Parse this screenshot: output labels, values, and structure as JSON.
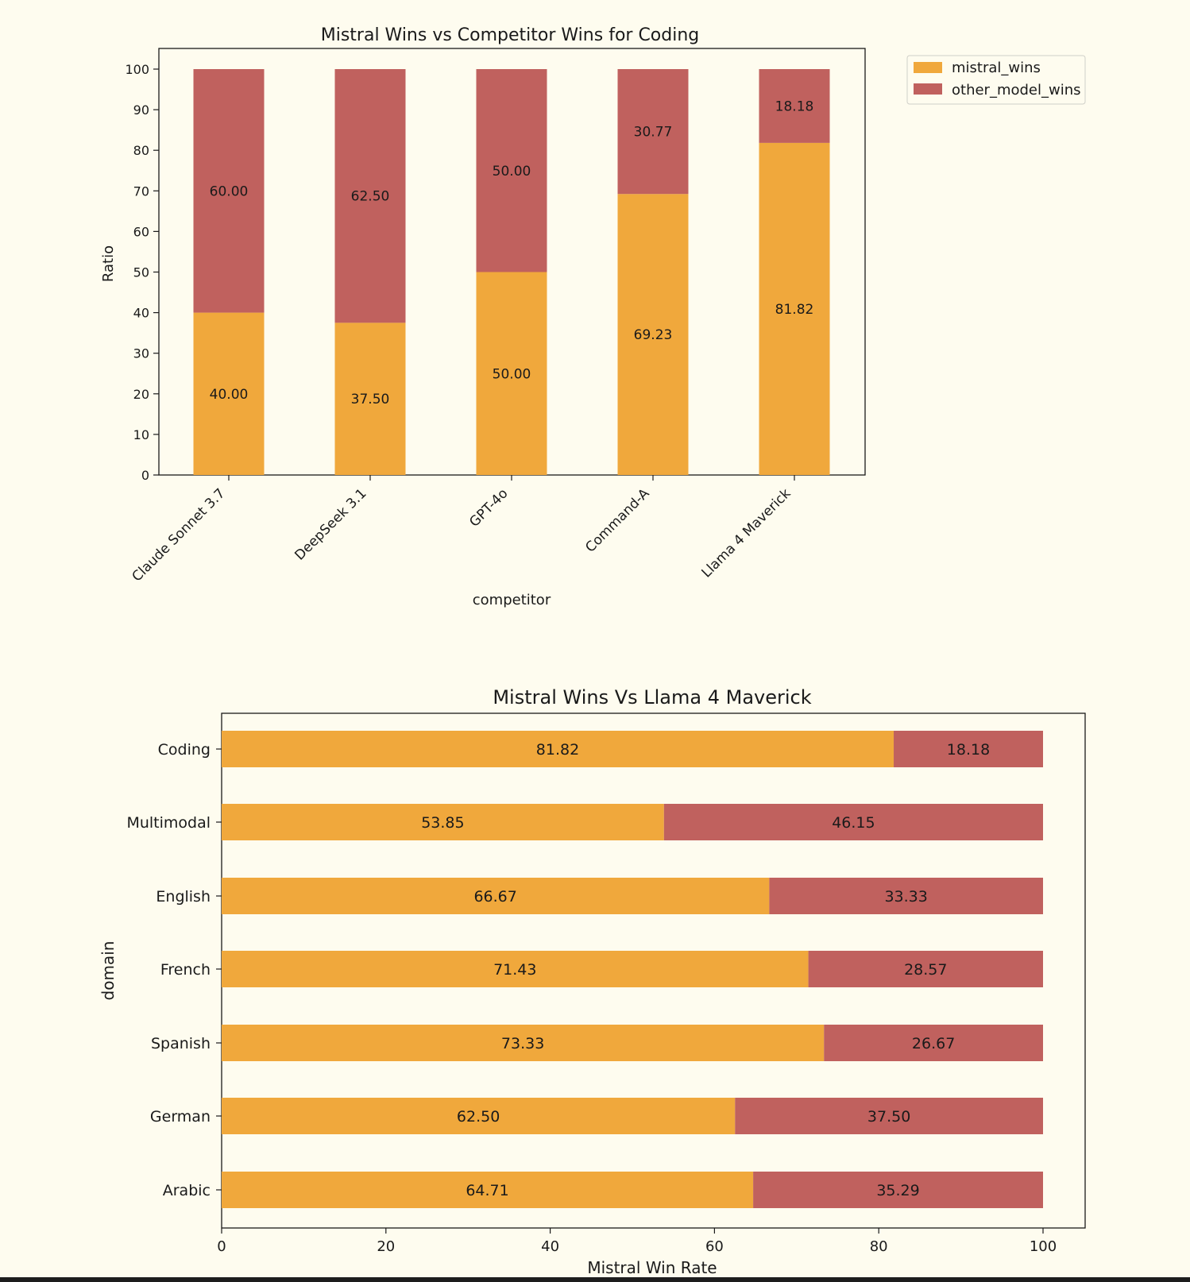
{
  "colors": {
    "background": "#fefcef",
    "mistral_wins": "#f0a83c",
    "other_model_wins": "#c0615e",
    "axis": "#1a1a1a"
  },
  "chart_data": [
    {
      "type": "bar",
      "orientation": "vertical",
      "stacked": true,
      "title": "Mistral Wins vs Competitor Wins for Coding",
      "xlabel": "competitor",
      "ylabel": "Ratio",
      "ylim": [
        0,
        100
      ],
      "yticks": [
        0,
        10,
        20,
        30,
        40,
        50,
        60,
        70,
        80,
        90,
        100
      ],
      "categories": [
        "Claude Sonnet 3.7",
        "DeepSeek 3.1",
        "GPT-4o",
        "Command-A",
        "Llama 4 Maverick"
      ],
      "series": [
        {
          "name": "mistral_wins",
          "values": [
            40.0,
            37.5,
            50.0,
            69.23,
            81.82
          ],
          "labels": [
            "40.00",
            "37.50",
            "50.00",
            "69.23",
            "81.82"
          ]
        },
        {
          "name": "other_model_wins",
          "values": [
            60.0,
            62.5,
            50.0,
            30.77,
            18.18
          ],
          "labels": [
            "60.00",
            "62.50",
            "50.00",
            "30.77",
            "18.18"
          ]
        }
      ],
      "legend": {
        "position": "outside-top-right",
        "entries": [
          "mistral_wins",
          "other_model_wins"
        ]
      },
      "grid": false
    },
    {
      "type": "bar",
      "orientation": "horizontal",
      "stacked": true,
      "title": "Mistral Wins Vs Llama 4 Maverick",
      "xlabel": "Mistral Win Rate",
      "ylabel": "domain",
      "xlim": [
        0,
        105
      ],
      "xticks": [
        0,
        20,
        40,
        60,
        80,
        100
      ],
      "categories": [
        "Coding",
        "Multimodal",
        "English",
        "French",
        "Spanish",
        "German",
        "Arabic"
      ],
      "series": [
        {
          "name": "mistral_wins",
          "values": [
            81.82,
            53.85,
            66.67,
            71.43,
            73.33,
            62.5,
            64.71
          ],
          "labels": [
            "81.82",
            "53.85",
            "66.67",
            "71.43",
            "73.33",
            "62.50",
            "64.71"
          ]
        },
        {
          "name": "other_model_wins",
          "values": [
            18.18,
            46.15,
            33.33,
            28.57,
            26.67,
            37.5,
            35.29
          ],
          "labels": [
            "18.18",
            "46.15",
            "33.33",
            "28.57",
            "26.67",
            "37.50",
            "35.29"
          ]
        }
      ],
      "legend": null,
      "grid": false
    }
  ]
}
